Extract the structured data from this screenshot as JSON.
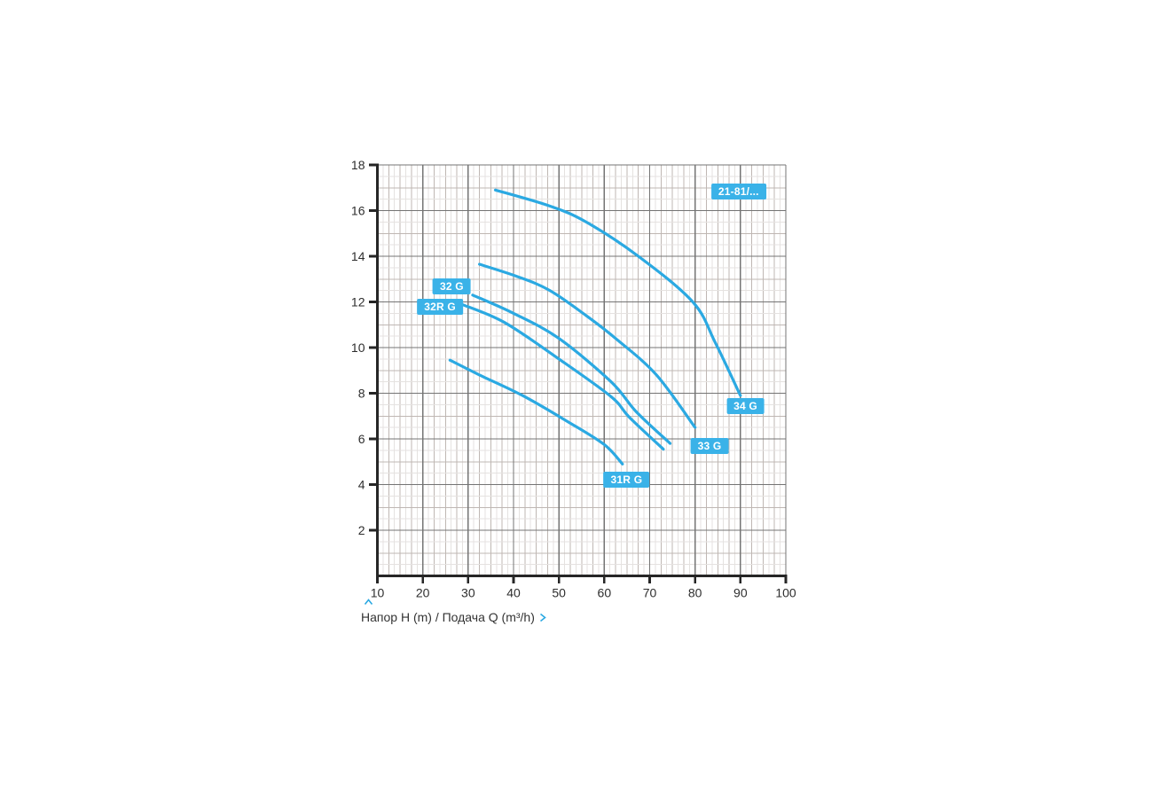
{
  "axis_caption": {
    "text": "Напор H (m) / Подача Q (m³/h)"
  },
  "colors": {
    "background": "#ffffff",
    "curve": "#2ba9e2",
    "badge_bg": "#3ab2e8",
    "badge_text": "#ffffff",
    "grid_major": "#747474",
    "grid_medium": "#bfb7b3",
    "grid_faint": "#e5e2e0",
    "axis": "#262626",
    "tick_text": "#2e2e2e",
    "accent": "#2ba9e2"
  },
  "chart_data": {
    "type": "line",
    "title": "",
    "xlabel": "Подача Q (m³/h)",
    "ylabel": "Напор H (m)",
    "caption": "Напор H (m) / Подача Q (m³/h)",
    "xlim": [
      10,
      100
    ],
    "ylim": [
      0,
      18
    ],
    "x_ticks": [
      10,
      20,
      30,
      40,
      50,
      60,
      70,
      80,
      90,
      100
    ],
    "y_ticks": [
      2,
      4,
      6,
      8,
      10,
      12,
      14,
      16,
      18
    ],
    "x_minor_step": 1.25,
    "x_medium_step": 2.5,
    "x_major_step": 10,
    "y_minor_step": 0.5,
    "y_medium_step": 1,
    "y_major_step": 2,
    "grid": true,
    "legend_position": "badges-on-curves",
    "series": [
      {
        "name": "34 G",
        "points": [
          [
            36,
            16.9
          ],
          [
            48,
            16.2
          ],
          [
            56,
            15.5
          ],
          [
            67.5,
            14.0
          ],
          [
            79.5,
            12.0
          ],
          [
            84.5,
            10.2
          ],
          [
            90,
            7.9
          ]
        ],
        "label_at": [
          91.1,
          7.45
        ]
      },
      {
        "name": "33 G",
        "points": [
          [
            32.5,
            13.65
          ],
          [
            41,
            13.1
          ],
          [
            48,
            12.5
          ],
          [
            56,
            11.4
          ],
          [
            62.5,
            10.4
          ],
          [
            71.5,
            8.8
          ],
          [
            80,
            6.5
          ]
        ],
        "label_at": [
          83.2,
          5.7
        ]
      },
      {
        "name": "32 G",
        "points": [
          [
            31,
            12.3
          ],
          [
            40,
            11.5
          ],
          [
            50,
            10.4
          ],
          [
            61.5,
            8.5
          ],
          [
            67,
            7.2
          ],
          [
            74.5,
            5.8
          ]
        ],
        "label_at": [
          26.4,
          12.7
        ]
      },
      {
        "name": "32R G",
        "points": [
          [
            28.5,
            11.9
          ],
          [
            38,
            11.1
          ],
          [
            50,
            9.5
          ],
          [
            61.5,
            7.85
          ],
          [
            65.5,
            6.95
          ],
          [
            73,
            5.55
          ]
        ],
        "label_at": [
          23.8,
          11.8
        ]
      },
      {
        "name": "31R G",
        "points": [
          [
            26,
            9.45
          ],
          [
            32.5,
            8.8
          ],
          [
            42,
            7.9
          ],
          [
            52,
            6.75
          ],
          [
            60,
            5.75
          ],
          [
            64,
            4.9
          ]
        ],
        "label_at": [
          64.9,
          4.2
        ]
      }
    ],
    "annotations": [
      {
        "text": "21-81/...",
        "at": [
          89.6,
          16.85
        ]
      }
    ]
  }
}
